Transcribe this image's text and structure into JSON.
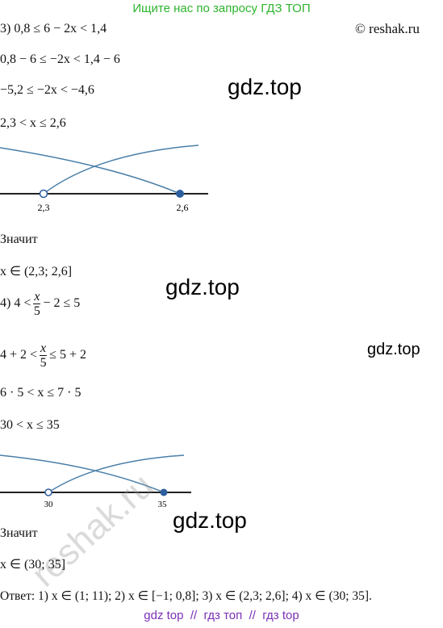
{
  "header": {
    "banner": "Ищите нас по запросу ГДЗ ТОП",
    "copyright": "© reshak.ru"
  },
  "part3": {
    "lines": [
      "3) 0,8 ≤ 6 − 2x < 1,4",
      "0,8 − 6 ≤ −2x < 1,4 − 6",
      "−5,2 ≤ −2x < −4,6",
      "2,3 < x ≤ 2,6"
    ],
    "axis_labels": [
      "2,3",
      "2,6"
    ],
    "conclusion": "Значит",
    "answer": "x ∈ (2,3; 2,6]"
  },
  "part4": {
    "line1": {
      "prefix": "4) 4 <",
      "numerator": "x",
      "denominator": "5",
      "suffix": "− 2 ≤ 5"
    },
    "line2": {
      "prefix": "4 + 2 <",
      "numerator": "x",
      "denominator": "5",
      "suffix": "≤ 5 + 2"
    },
    "lines": [
      "6 · 5 < x ≤ 7 · 5",
      "30 < x ≤ 35"
    ],
    "axis_labels": [
      "30",
      "35"
    ],
    "conclusion": "Значит",
    "answer": "x ∈ (30; 35]"
  },
  "final_answer": "Ответ: 1) x ∈ (1; 11); 2) x ∈ [−1; 0,8]; 3) x ∈ (2,3; 2,6]; 4) x ∈ (30; 35].",
  "watermarks": [
    "gdz.top",
    "gdz.top",
    "gdz.top",
    "gdz.top",
    "reshak.ru"
  ],
  "footer": "gdz top  //  гдз топ  //  гдз top"
}
